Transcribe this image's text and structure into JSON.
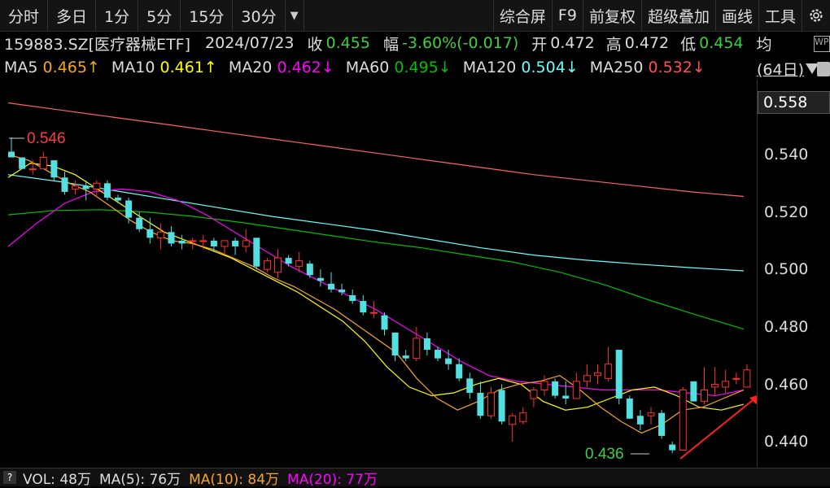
{
  "toolbar": {
    "left": [
      "分时",
      "多日",
      "1分",
      "5分",
      "15分",
      "30分"
    ],
    "right": [
      "综合屏",
      "F9",
      "前复权",
      "超级叠加",
      "画线",
      "工具"
    ],
    "gear_icon": "gear-icon",
    "dropdown_icon": "dropdown-icon"
  },
  "info": {
    "code": "159883.SZ[医疗器械ETF]",
    "date": "2024/07/23",
    "close_label": "收",
    "close": "0.455",
    "change_label": "幅",
    "change": "-3.60%(-0.017)",
    "open_label": "开",
    "open": "0.472",
    "high_label": "高",
    "high": "0.472",
    "low_label": "低",
    "low": "0.454",
    "avg_label": "均",
    "side_icon": "WP"
  },
  "ma_line": [
    {
      "label": "MA5",
      "value": "0.465↑",
      "color": "#f5a623"
    },
    {
      "label": "MA10",
      "value": "0.461↑",
      "color": "#ffff00"
    },
    {
      "label": "MA20",
      "value": "0.462↓",
      "color": "#ff00ff"
    },
    {
      "label": "MA60",
      "value": "0.495↓",
      "color": "#00c000"
    },
    {
      "label": "MA120",
      "value": "0.504↓",
      "color": "#66ffff"
    },
    {
      "label": "MA250",
      "value": "0.532↓",
      "color": "#ff5050"
    }
  ],
  "period": "(64日)",
  "axis": {
    "highlight": "0.558",
    "ticks": [
      "0.540",
      "0.520",
      "0.500",
      "0.480",
      "0.460",
      "0.440"
    ]
  },
  "annotations": {
    "high": "0.546",
    "low": "0.436"
  },
  "volume_bar": {
    "q": "?",
    "vol_label": "VOL: 48万",
    "ma5_label": "MA(5): 76万",
    "ma10_label": "MA(10): 84万",
    "ma20_label": "MA(20): 77万",
    "ma10_color": "#f5a623",
    "ma20_color": "#ff00ff"
  },
  "chart_data": {
    "type": "candlestick",
    "ylim": [
      0.435,
      0.56
    ],
    "up_color": "#ff3030",
    "down_color": "#54e0e0",
    "candles": [
      {
        "o": 0.541,
        "h": 0.546,
        "l": 0.539,
        "c": 0.539
      },
      {
        "o": 0.539,
        "h": 0.539,
        "l": 0.535,
        "c": 0.535
      },
      {
        "o": 0.535,
        "h": 0.538,
        "l": 0.533,
        "c": 0.535
      },
      {
        "o": 0.535,
        "h": 0.541,
        "l": 0.535,
        "c": 0.539
      },
      {
        "o": 0.538,
        "h": 0.538,
        "l": 0.531,
        "c": 0.532
      },
      {
        "o": 0.532,
        "h": 0.534,
        "l": 0.526,
        "c": 0.527
      },
      {
        "o": 0.528,
        "h": 0.531,
        "l": 0.526,
        "c": 0.529
      },
      {
        "o": 0.529,
        "h": 0.531,
        "l": 0.524,
        "c": 0.528
      },
      {
        "o": 0.528,
        "h": 0.531,
        "l": 0.525,
        "c": 0.53
      },
      {
        "o": 0.53,
        "h": 0.531,
        "l": 0.524,
        "c": 0.525
      },
      {
        "o": 0.525,
        "h": 0.526,
        "l": 0.523,
        "c": 0.524
      },
      {
        "o": 0.524,
        "h": 0.525,
        "l": 0.516,
        "c": 0.518
      },
      {
        "o": 0.518,
        "h": 0.52,
        "l": 0.513,
        "c": 0.514
      },
      {
        "o": 0.514,
        "h": 0.518,
        "l": 0.509,
        "c": 0.511
      },
      {
        "o": 0.511,
        "h": 0.516,
        "l": 0.507,
        "c": 0.513
      },
      {
        "o": 0.513,
        "h": 0.515,
        "l": 0.508,
        "c": 0.509
      },
      {
        "o": 0.51,
        "h": 0.512,
        "l": 0.507,
        "c": 0.509
      },
      {
        "o": 0.51,
        "h": 0.511,
        "l": 0.507,
        "c": 0.51
      },
      {
        "o": 0.51,
        "h": 0.512,
        "l": 0.507,
        "c": 0.51
      },
      {
        "o": 0.51,
        "h": 0.511,
        "l": 0.506,
        "c": 0.508
      },
      {
        "o": 0.508,
        "h": 0.51,
        "l": 0.505,
        "c": 0.51
      },
      {
        "o": 0.51,
        "h": 0.511,
        "l": 0.505,
        "c": 0.508
      },
      {
        "o": 0.508,
        "h": 0.514,
        "l": 0.506,
        "c": 0.51
      },
      {
        "o": 0.511,
        "h": 0.511,
        "l": 0.5,
        "c": 0.501
      },
      {
        "o": 0.5,
        "h": 0.504,
        "l": 0.499,
        "c": 0.503
      },
      {
        "o": 0.499,
        "h": 0.507,
        "l": 0.497,
        "c": 0.504
      },
      {
        "o": 0.504,
        "h": 0.505,
        "l": 0.501,
        "c": 0.502
      },
      {
        "o": 0.501,
        "h": 0.506,
        "l": 0.499,
        "c": 0.503
      },
      {
        "o": 0.502,
        "h": 0.503,
        "l": 0.497,
        "c": 0.498
      },
      {
        "o": 0.497,
        "h": 0.5,
        "l": 0.494,
        "c": 0.496
      },
      {
        "o": 0.495,
        "h": 0.499,
        "l": 0.492,
        "c": 0.493
      },
      {
        "o": 0.493,
        "h": 0.495,
        "l": 0.491,
        "c": 0.492
      },
      {
        "o": 0.491,
        "h": 0.493,
        "l": 0.488,
        "c": 0.489
      },
      {
        "o": 0.489,
        "h": 0.491,
        "l": 0.484,
        "c": 0.485
      },
      {
        "o": 0.485,
        "h": 0.489,
        "l": 0.483,
        "c": 0.485
      },
      {
        "o": 0.484,
        "h": 0.485,
        "l": 0.477,
        "c": 0.479
      },
      {
        "o": 0.478,
        "h": 0.478,
        "l": 0.468,
        "c": 0.47
      },
      {
        "o": 0.47,
        "h": 0.472,
        "l": 0.468,
        "c": 0.469
      },
      {
        "o": 0.469,
        "h": 0.48,
        "l": 0.468,
        "c": 0.476
      },
      {
        "o": 0.476,
        "h": 0.478,
        "l": 0.47,
        "c": 0.472
      },
      {
        "o": 0.472,
        "h": 0.473,
        "l": 0.468,
        "c": 0.469
      },
      {
        "o": 0.469,
        "h": 0.472,
        "l": 0.465,
        "c": 0.467
      },
      {
        "o": 0.467,
        "h": 0.469,
        "l": 0.461,
        "c": 0.462
      },
      {
        "o": 0.462,
        "h": 0.464,
        "l": 0.455,
        "c": 0.457
      },
      {
        "o": 0.457,
        "h": 0.461,
        "l": 0.448,
        "c": 0.449
      },
      {
        "o": 0.449,
        "h": 0.459,
        "l": 0.448,
        "c": 0.457
      },
      {
        "o": 0.458,
        "h": 0.46,
        "l": 0.446,
        "c": 0.447
      },
      {
        "o": 0.446,
        "h": 0.45,
        "l": 0.44,
        "c": 0.449
      },
      {
        "o": 0.447,
        "h": 0.452,
        "l": 0.446,
        "c": 0.45
      },
      {
        "o": 0.455,
        "h": 0.459,
        "l": 0.452,
        "c": 0.458
      },
      {
        "o": 0.458,
        "h": 0.463,
        "l": 0.456,
        "c": 0.461
      },
      {
        "o": 0.461,
        "h": 0.462,
        "l": 0.455,
        "c": 0.456
      },
      {
        "o": 0.456,
        "h": 0.461,
        "l": 0.453,
        "c": 0.455
      },
      {
        "o": 0.455,
        "h": 0.464,
        "l": 0.455,
        "c": 0.461
      },
      {
        "o": 0.461,
        "h": 0.467,
        "l": 0.459,
        "c": 0.463
      },
      {
        "o": 0.463,
        "h": 0.467,
        "l": 0.46,
        "c": 0.464
      },
      {
        "o": 0.462,
        "h": 0.473,
        "l": 0.461,
        "c": 0.467
      },
      {
        "o": 0.472,
        "h": 0.472,
        "l": 0.453,
        "c": 0.455
      },
      {
        "o": 0.455,
        "h": 0.456,
        "l": 0.448,
        "c": 0.448
      },
      {
        "o": 0.449,
        "h": 0.451,
        "l": 0.444,
        "c": 0.446
      },
      {
        "o": 0.449,
        "h": 0.452,
        "l": 0.446,
        "c": 0.45
      },
      {
        "o": 0.45,
        "h": 0.451,
        "l": 0.441,
        "c": 0.442
      },
      {
        "o": 0.439,
        "h": 0.44,
        "l": 0.436,
        "c": 0.437
      },
      {
        "o": 0.437,
        "h": 0.459,
        "l": 0.437,
        "c": 0.458
      },
      {
        "o": 0.461,
        "h": 0.461,
        "l": 0.454,
        "c": 0.454
      },
      {
        "o": 0.454,
        "h": 0.466,
        "l": 0.453,
        "c": 0.458
      },
      {
        "o": 0.459,
        "h": 0.466,
        "l": 0.456,
        "c": 0.46
      },
      {
        "o": 0.459,
        "h": 0.465,
        "l": 0.457,
        "c": 0.461
      },
      {
        "o": 0.462,
        "h": 0.464,
        "l": 0.46,
        "c": 0.462
      },
      {
        "o": 0.459,
        "h": 0.467,
        "l": 0.459,
        "c": 0.465
      }
    ],
    "ma_lines": [
      {
        "name": "MA250",
        "color": "#ff6464",
        "values": [
          0.558,
          0.5555,
          0.553,
          0.5505,
          0.548,
          0.5455,
          0.543,
          0.5405,
          0.538,
          0.5355,
          0.533,
          0.531,
          0.529,
          0.527,
          0.5254
        ]
      },
      {
        "name": "MA120",
        "color": "#66ffff",
        "values": [
          0.533,
          0.5305,
          0.5275,
          0.5245,
          0.5215,
          0.5185,
          0.516,
          0.5135,
          0.5105,
          0.5075,
          0.505,
          0.5032,
          0.5018,
          0.5006,
          0.4995
        ]
      },
      {
        "name": "MA60",
        "color": "#00c000",
        "values": [
          0.519,
          0.5205,
          0.5208,
          0.52,
          0.5185,
          0.5165,
          0.5142,
          0.5118,
          0.5095,
          0.5075,
          0.505,
          0.5025,
          0.499,
          0.4945,
          0.489,
          0.484,
          0.4792
        ]
      },
      {
        "name": "MA20",
        "color": "#ff00ff",
        "values": [
          0.508,
          0.516,
          0.523,
          0.527,
          0.528,
          0.527,
          0.524,
          0.519,
          0.513,
          0.507,
          0.501,
          0.496,
          0.491,
          0.486,
          0.48,
          0.474,
          0.468,
          0.463,
          0.461,
          0.46,
          0.459,
          0.458,
          0.458,
          0.458,
          0.457,
          0.456,
          0.458
        ]
      },
      {
        "name": "MA10",
        "color": "#ffff00",
        "values": [
          0.532,
          0.537,
          0.536,
          0.533,
          0.528,
          0.523,
          0.518,
          0.513,
          0.51,
          0.507,
          0.504,
          0.5,
          0.496,
          0.492,
          0.487,
          0.482,
          0.475,
          0.466,
          0.459,
          0.456,
          0.457,
          0.46,
          0.462,
          0.46,
          0.454,
          0.451,
          0.452,
          0.455,
          0.458,
          0.459,
          0.456,
          0.452,
          0.451,
          0.453
        ]
      },
      {
        "name": "MA5",
        "color": "#f5a623",
        "values": [
          0.54,
          0.538,
          0.534,
          0.53,
          0.527,
          0.522,
          0.517,
          0.513,
          0.51,
          0.509,
          0.507,
          0.504,
          0.501,
          0.497,
          0.494,
          0.49,
          0.486,
          0.481,
          0.476,
          0.471,
          0.462,
          0.455,
          0.451,
          0.454,
          0.458,
          0.46,
          0.461,
          0.463,
          0.458,
          0.452,
          0.447,
          0.443,
          0.446,
          0.451,
          0.452,
          0.455,
          0.458
        ]
      }
    ]
  }
}
